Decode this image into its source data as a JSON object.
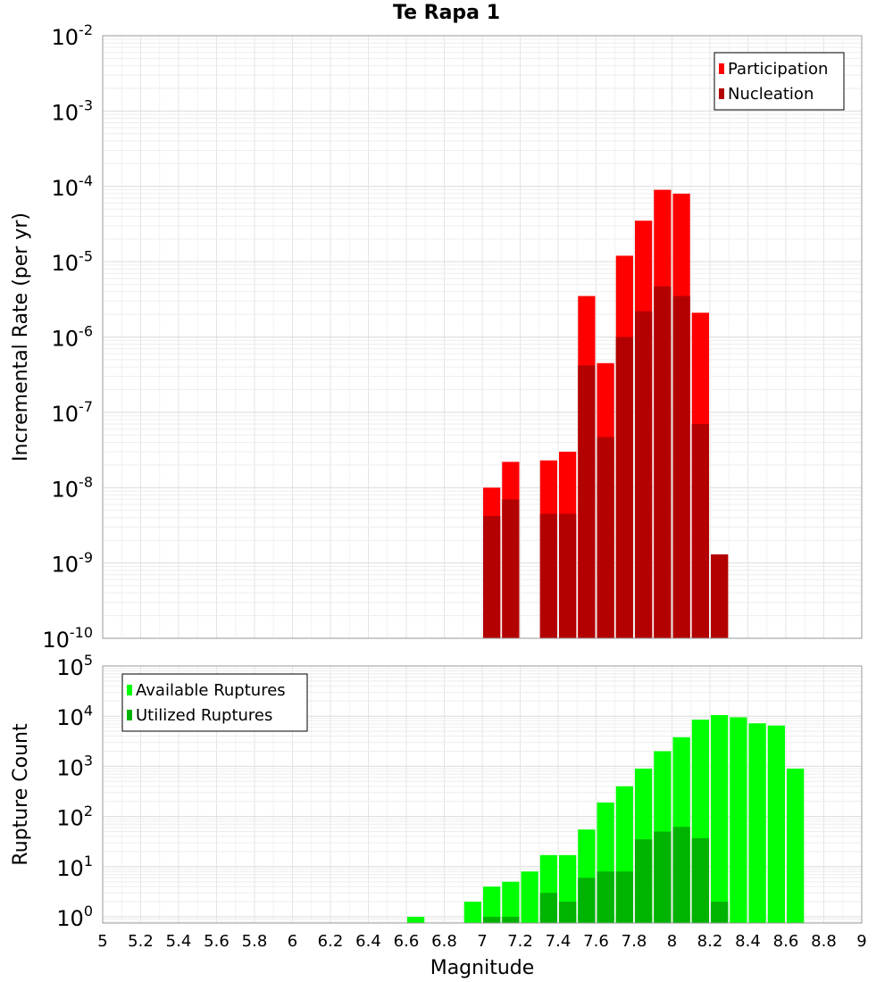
{
  "title": "Te Rapa 1",
  "chart_data": [
    {
      "type": "bar",
      "ylabel": "Incremental Rate (per yr)",
      "xlabel": "",
      "yscale": "log",
      "ylim": [
        1e-10,
        0.01
      ],
      "xlim": [
        5,
        9
      ],
      "bar_width": 0.1,
      "grid": true,
      "legend_position": "top-right",
      "y_tick_labels": [
        "10^-10",
        "10^-9",
        "10^-8",
        "10^-7",
        "10^-6",
        "10^-5",
        "10^-4",
        "10^-3",
        "10^-2"
      ],
      "series": [
        {
          "name": "Participation",
          "color": "#ff0000",
          "x": [
            7.05,
            7.15,
            7.35,
            7.45,
            7.55,
            7.65,
            7.75,
            7.85,
            7.95,
            8.05,
            8.15,
            8.25
          ],
          "values": [
            1e-08,
            2.2e-08,
            2.3e-08,
            3e-08,
            3.5e-06,
            4.5e-07,
            1.2e-05,
            3.5e-05,
            9e-05,
            8e-05,
            2.1e-06,
            1.3e-09
          ]
        },
        {
          "name": "Nucleation",
          "color": "#b30000",
          "x": [
            7.05,
            7.15,
            7.35,
            7.45,
            7.55,
            7.65,
            7.75,
            7.85,
            7.95,
            8.05,
            8.15,
            8.25
          ],
          "values": [
            4.2e-09,
            7e-09,
            4.5e-09,
            4.5e-09,
            4.2e-07,
            4.7e-08,
            1e-06,
            2.2e-06,
            4.7e-06,
            3.5e-06,
            7e-08,
            1.3e-09
          ]
        }
      ]
    },
    {
      "type": "bar",
      "ylabel": "Rupture Count",
      "xlabel": "Magnitude",
      "yscale": "log",
      "ylim": [
        0.75,
        100000.0
      ],
      "xlim": [
        5,
        9
      ],
      "bar_width": 0.1,
      "grid": true,
      "legend_position": "top-left",
      "x_tick_labels": [
        "5",
        "5.2",
        "5.4",
        "5.6",
        "5.8",
        "6",
        "6.2",
        "6.4",
        "6.6",
        "6.8",
        "7",
        "7.2",
        "7.4",
        "7.6",
        "7.8",
        "8",
        "8.2",
        "8.4",
        "8.6",
        "8.8",
        "9"
      ],
      "y_tick_labels": [
        "10^0",
        "10^1",
        "10^2",
        "10^3",
        "10^4",
        "10^5"
      ],
      "series": [
        {
          "name": "Available Ruptures",
          "color": "#00ff00",
          "x": [
            6.65,
            6.95,
            7.05,
            7.15,
            7.25,
            7.35,
            7.45,
            7.55,
            7.65,
            7.75,
            7.85,
            7.95,
            8.05,
            8.15,
            8.25,
            8.35,
            8.45,
            8.55,
            8.65
          ],
          "values": [
            1,
            2,
            4,
            5,
            8,
            17,
            17,
            55,
            190,
            400,
            900,
            2000,
            3800,
            8500,
            10500,
            9500,
            7200,
            6500,
            900
          ]
        },
        {
          "name": "Utilized Ruptures",
          "color": "#00b300",
          "x": [
            7.05,
            7.15,
            7.35,
            7.45,
            7.55,
            7.65,
            7.75,
            7.85,
            7.95,
            8.05,
            8.15,
            8.25
          ],
          "values": [
            1,
            1,
            3,
            2,
            6,
            8,
            8,
            35,
            50,
            62,
            37,
            2
          ]
        }
      ]
    }
  ]
}
